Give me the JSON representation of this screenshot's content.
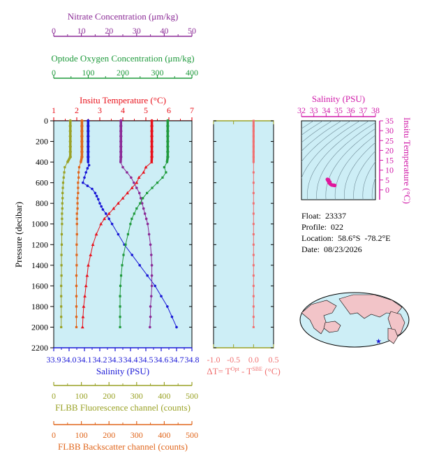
{
  "colors": {
    "nitrate": "#8b2a96",
    "oxygen": "#1f9a3c",
    "temperature": "#e8101a",
    "salinity": "#1a18d6",
    "fluorescence": "#9aa226",
    "backscatter": "#e0661c",
    "deltaT": "#f07070",
    "panel_bg": "#cdeef6",
    "ts_axis": "#d01aa8"
  },
  "float_info": {
    "float": "Float:  23337",
    "profile": "Profile:  022",
    "location": "Location:  58.6°S  -78.2°E",
    "date": "Date:  08/23/2026"
  },
  "chart_data": [
    {
      "type": "line",
      "id": "profile",
      "ylabel": "Pressure (decibar)",
      "ylim": [
        2200,
        0
      ],
      "yticks": [
        "0",
        "200",
        "400",
        "600",
        "800",
        "1000",
        "1200",
        "1400",
        "1600",
        "1800",
        "2000",
        "2200"
      ],
      "axes": {
        "nitrate": {
          "label": "Nitrate Concentration (μm/kg)",
          "range": [
            0,
            50
          ],
          "ticks": [
            "0",
            "10",
            "20",
            "30",
            "40",
            "50"
          ]
        },
        "oxygen": {
          "label": "Optode Oxygen Concentration (μm/kg)",
          "range": [
            0,
            400
          ],
          "ticks": [
            "0",
            "100",
            "200",
            "300",
            "400"
          ]
        },
        "temperature": {
          "label": "Insitu Temperature (°C)",
          "range": [
            1,
            7
          ],
          "ticks": [
            "1",
            "2",
            "3",
            "4",
            "5",
            "6",
            "7"
          ]
        },
        "salinity": {
          "label": "Salinity (PSU)",
          "range": [
            33.9,
            34.8
          ],
          "ticks": [
            "33.9",
            "34.0",
            "34.1",
            "34.2",
            "34.3",
            "34.4",
            "34.5",
            "34.6",
            "34.7",
            "34.8"
          ]
        },
        "fluorescence": {
          "label": "FLBB Fluorescence channel (counts)",
          "range": [
            0,
            500
          ],
          "ticks": [
            "0",
            "100",
            "200",
            "300",
            "400",
            "500"
          ]
        },
        "backscatter": {
          "label": "FLBB Backscatter channel (counts)",
          "range": [
            0,
            500
          ],
          "ticks": [
            "0",
            "100",
            "200",
            "300",
            "400",
            "500"
          ]
        }
      },
      "series": [
        {
          "key": "fluorescence",
          "axis": "fluorescence",
          "marker": "square",
          "points": [
            [
              60,
              0
            ],
            [
              60,
              50
            ],
            [
              60,
              100
            ],
            [
              60,
              150
            ],
            [
              60,
              200
            ],
            [
              60,
              250
            ],
            [
              60,
              300
            ],
            [
              60,
              350
            ],
            [
              50,
              400
            ],
            [
              40,
              450
            ],
            [
              38,
              500
            ],
            [
              36,
              550
            ],
            [
              34,
              600
            ],
            [
              33,
              650
            ],
            [
              32,
              700
            ],
            [
              32,
              750
            ],
            [
              31,
              800
            ],
            [
              31,
              850
            ],
            [
              30,
              900
            ],
            [
              30,
              950
            ],
            [
              30,
              1000
            ],
            [
              29,
              1100
            ],
            [
              29,
              1200
            ],
            [
              28,
              1300
            ],
            [
              28,
              1400
            ],
            [
              28,
              1500
            ],
            [
              27,
              1600
            ],
            [
              27,
              1700
            ],
            [
              27,
              1800
            ],
            [
              27,
              1900
            ],
            [
              27,
              2000
            ]
          ]
        },
        {
          "key": "backscatter",
          "axis": "backscatter",
          "marker": "square",
          "points": [
            [
              102,
              0
            ],
            [
              102,
              50
            ],
            [
              102,
              100
            ],
            [
              102,
              150
            ],
            [
              102,
              200
            ],
            [
              102,
              250
            ],
            [
              102,
              300
            ],
            [
              102,
              350
            ],
            [
              98,
              400
            ],
            [
              92,
              450
            ],
            [
              90,
              500
            ],
            [
              90,
              550
            ],
            [
              88,
              600
            ],
            [
              88,
              650
            ],
            [
              88,
              700
            ],
            [
              86,
              750
            ],
            [
              86,
              800
            ],
            [
              86,
              850
            ],
            [
              84,
              900
            ],
            [
              84,
              950
            ],
            [
              84,
              1000
            ],
            [
              84,
              1100
            ],
            [
              83,
              1200
            ],
            [
              83,
              1300
            ],
            [
              83,
              1400
            ],
            [
              82,
              1500
            ],
            [
              82,
              1600
            ],
            [
              82,
              1700
            ],
            [
              82,
              1800
            ],
            [
              82,
              1900
            ],
            [
              82,
              2000
            ]
          ]
        },
        {
          "key": "salinity",
          "axis": "salinity",
          "marker": "circle",
          "points": [
            [
              34.124,
              0
            ],
            [
              34.124,
              50
            ],
            [
              34.124,
              100
            ],
            [
              34.124,
              150
            ],
            [
              34.124,
              200
            ],
            [
              34.124,
              250
            ],
            [
              34.124,
              300
            ],
            [
              34.124,
              350
            ],
            [
              34.124,
              400
            ],
            [
              34.13,
              430
            ],
            [
              34.12,
              460
            ],
            [
              34.11,
              500
            ],
            [
              34.1,
              550
            ],
            [
              34.09,
              600
            ],
            [
              34.12,
              630
            ],
            [
              34.15,
              660
            ],
            [
              34.17,
              700
            ],
            [
              34.18,
              730
            ],
            [
              34.19,
              760
            ],
            [
              34.2,
              800
            ],
            [
              34.21,
              830
            ],
            [
              34.22,
              860
            ],
            [
              34.24,
              900
            ],
            [
              34.26,
              950
            ],
            [
              34.28,
              1000
            ],
            [
              34.32,
              1100
            ],
            [
              34.36,
              1200
            ],
            [
              34.41,
              1300
            ],
            [
              34.46,
              1400
            ],
            [
              34.51,
              1500
            ],
            [
              34.56,
              1600
            ],
            [
              34.6,
              1700
            ],
            [
              34.64,
              1800
            ],
            [
              34.67,
              1900
            ],
            [
              34.7,
              2000
            ]
          ]
        },
        {
          "key": "nitrate",
          "axis": "nitrate",
          "marker": "circle",
          "points": [
            [
              24.3,
              0
            ],
            [
              24.3,
              50
            ],
            [
              24.3,
              100
            ],
            [
              24.3,
              150
            ],
            [
              24.3,
              200
            ],
            [
              24.3,
              250
            ],
            [
              24.3,
              300
            ],
            [
              24.3,
              350
            ],
            [
              24.2,
              400
            ],
            [
              25,
              450
            ],
            [
              26.5,
              500
            ],
            [
              28,
              550
            ],
            [
              29,
              600
            ],
            [
              30,
              650
            ],
            [
              31,
              700
            ],
            [
              31.5,
              750
            ],
            [
              32,
              800
            ],
            [
              32.5,
              850
            ],
            [
              33,
              900
            ],
            [
              33.5,
              950
            ],
            [
              34,
              1000
            ],
            [
              34.5,
              1100
            ],
            [
              35,
              1200
            ],
            [
              35.3,
              1300
            ],
            [
              35.5,
              1400
            ],
            [
              35.5,
              1500
            ],
            [
              35.5,
              1600
            ],
            [
              35.3,
              1700
            ],
            [
              35,
              1800
            ],
            [
              35,
              1900
            ],
            [
              34.8,
              2000
            ]
          ]
        },
        {
          "key": "temperature",
          "axis": "temperature",
          "marker": "triangle",
          "points": [
            [
              5.26,
              0
            ],
            [
              5.26,
              50
            ],
            [
              5.26,
              100
            ],
            [
              5.26,
              150
            ],
            [
              5.26,
              200
            ],
            [
              5.26,
              250
            ],
            [
              5.26,
              300
            ],
            [
              5.26,
              350
            ],
            [
              5.25,
              400
            ],
            [
              5.0,
              450
            ],
            [
              4.9,
              500
            ],
            [
              4.7,
              550
            ],
            [
              4.6,
              600
            ],
            [
              4.4,
              650
            ],
            [
              4.2,
              700
            ],
            [
              4.0,
              750
            ],
            [
              3.8,
              800
            ],
            [
              3.6,
              850
            ],
            [
              3.4,
              900
            ],
            [
              3.2,
              950
            ],
            [
              3.05,
              1000
            ],
            [
              2.85,
              1100
            ],
            [
              2.7,
              1200
            ],
            [
              2.6,
              1300
            ],
            [
              2.5,
              1400
            ],
            [
              2.45,
              1500
            ],
            [
              2.4,
              1600
            ],
            [
              2.35,
              1700
            ],
            [
              2.3,
              1800
            ],
            [
              2.27,
              1900
            ],
            [
              2.25,
              2000
            ]
          ]
        },
        {
          "key": "oxygen",
          "axis": "oxygen",
          "marker": "square",
          "points": [
            [
              330,
              0
            ],
            [
              330,
              50
            ],
            [
              330,
              100
            ],
            [
              330,
              150
            ],
            [
              330,
              200
            ],
            [
              330,
              250
            ],
            [
              330,
              300
            ],
            [
              330,
              350
            ],
            [
              328,
              400
            ],
            [
              320,
              450
            ],
            [
              325,
              500
            ],
            [
              315,
              550
            ],
            [
              300,
              600
            ],
            [
              285,
              650
            ],
            [
              270,
              700
            ],
            [
              258,
              750
            ],
            [
              250,
              800
            ],
            [
              240,
              850
            ],
            [
              233,
              900
            ],
            [
              226,
              950
            ],
            [
              222,
              1000
            ],
            [
              215,
              1100
            ],
            [
              208,
              1200
            ],
            [
              202,
              1300
            ],
            [
              198,
              1400
            ],
            [
              195,
              1500
            ],
            [
              193,
              1600
            ],
            [
              192,
              1700
            ],
            [
              192,
              1800
            ],
            [
              192,
              1900
            ],
            [
              192,
              2000
            ]
          ]
        }
      ]
    },
    {
      "type": "line",
      "id": "deltaT",
      "xlabel": "ΔT= T",
      "xlabel_sup1": "Opt",
      "xlabel_mid": " - T",
      "xlabel_sup2": "SBE",
      "xlabel_unit": " (°C)",
      "xlim": [
        -1.0,
        0.5
      ],
      "xticks": [
        "-1.0",
        "-0.5",
        "0.0",
        "0.5"
      ],
      "series": [
        {
          "name": "ΔT",
          "points": [
            [
              0,
              0
            ],
            [
              0,
              50
            ],
            [
              0,
              100
            ],
            [
              0,
              150
            ],
            [
              0,
              200
            ],
            [
              0,
              250
            ],
            [
              0,
              300
            ],
            [
              0,
              350
            ],
            [
              0,
              400
            ],
            [
              0,
              500
            ],
            [
              0,
              600
            ],
            [
              0,
              700
            ],
            [
              0,
              800
            ],
            [
              0,
              900
            ],
            [
              0,
              1000
            ],
            [
              0,
              1100
            ],
            [
              0,
              1200
            ],
            [
              0,
              1300
            ],
            [
              0,
              1400
            ],
            [
              0,
              1500
            ],
            [
              0,
              1600
            ],
            [
              0,
              1700
            ],
            [
              0,
              1800
            ],
            [
              0,
              1900
            ],
            [
              0,
              2000
            ]
          ]
        }
      ]
    },
    {
      "type": "scatter",
      "id": "ts",
      "xlabel": "Salinity (PSU)",
      "ylabel": "Insitu Temperature (°C)",
      "xlim": [
        32,
        38
      ],
      "ylim": [
        -5,
        35
      ],
      "xticks": [
        "32",
        "33",
        "34",
        "35",
        "36",
        "37",
        "38"
      ],
      "yticks": [
        "0",
        "5",
        "10",
        "15",
        "20",
        "25",
        "30",
        "35"
      ],
      "points": [
        [
          34.1,
          5.3
        ],
        [
          34.13,
          5.0
        ],
        [
          34.18,
          4.4
        ],
        [
          34.25,
          3.5
        ],
        [
          34.35,
          2.9
        ],
        [
          34.45,
          2.5
        ],
        [
          34.55,
          2.4
        ],
        [
          34.65,
          2.3
        ],
        [
          34.7,
          2.25
        ],
        [
          34.2,
          5.1
        ],
        [
          34.3,
          4.0
        ]
      ]
    }
  ]
}
